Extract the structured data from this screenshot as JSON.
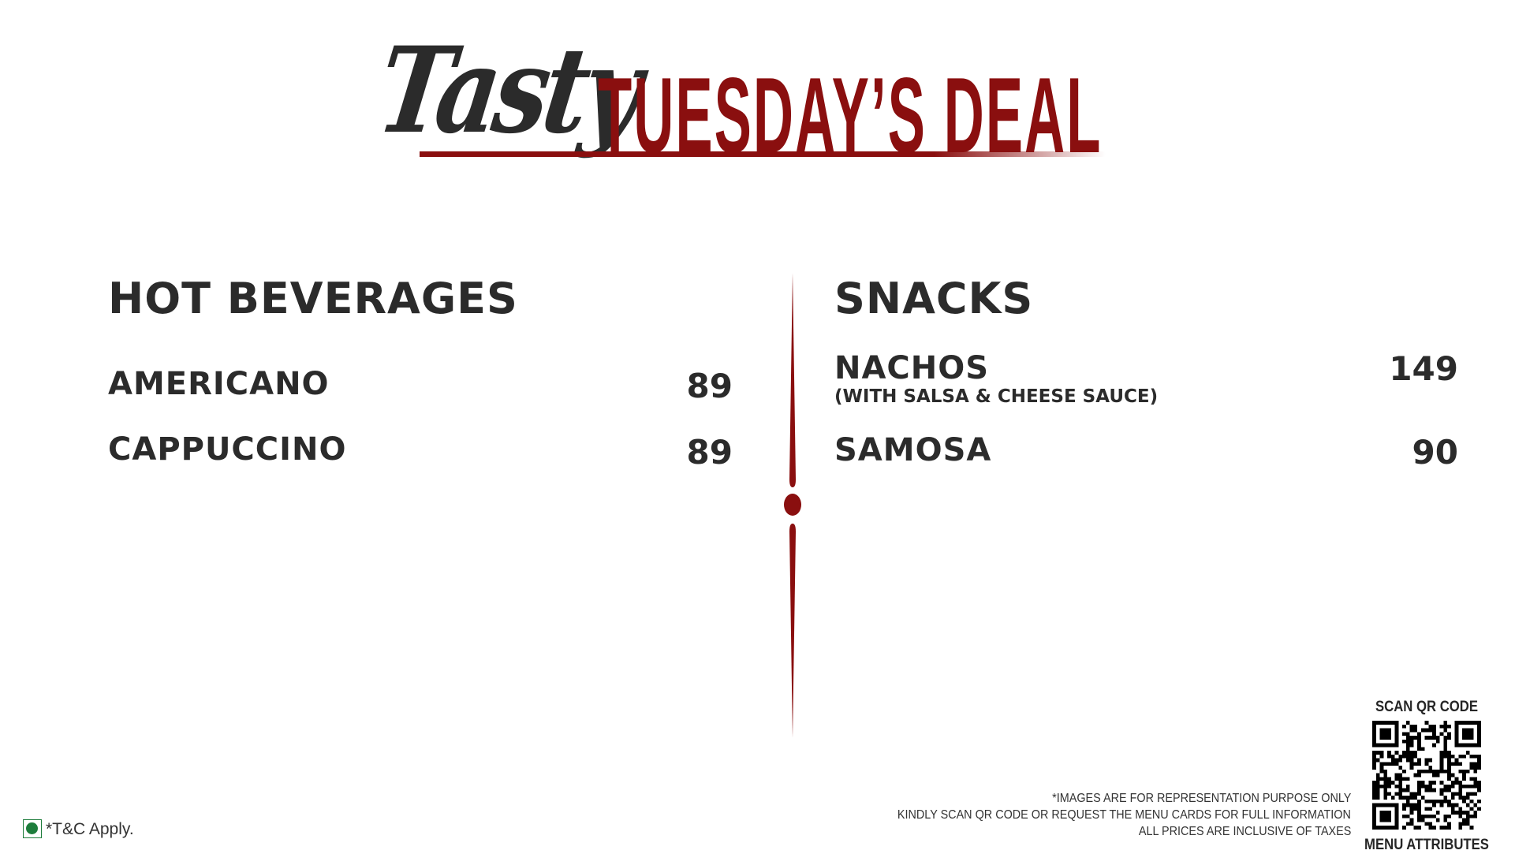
{
  "header": {
    "script_word": "Tasty",
    "title": "TUESDAY’S DEAL"
  },
  "colors": {
    "accent": "#8a0f0f",
    "text": "#2b2b2b",
    "veg": "#1e7d3c"
  },
  "left": {
    "category": "HOT BEVERAGES",
    "items": [
      {
        "name": "AMERICANO",
        "price": "89"
      },
      {
        "name": "CAPPUCCINO",
        "price": "89"
      }
    ]
  },
  "right": {
    "category": "SNACKS",
    "items": [
      {
        "name": "NACHOS",
        "note": "(WITH SALSA & CHEESE SAUCE)",
        "price": "149"
      },
      {
        "name": "SAMOSA",
        "price": "90"
      }
    ]
  },
  "footer": {
    "disclaimers": [
      "*IMAGES ARE FOR REPRESENTATION PURPOSE ONLY",
      "KINDLY SCAN QR CODE OR REQUEST THE MENU CARDS FOR FULL INFORMATION",
      "ALL PRICES ARE INCLUSIVE OF TAXES"
    ],
    "qr_top_label": "SCAN QR CODE",
    "qr_bottom_label": "MENU ATTRIBUTES",
    "terms": "*T&C Apply.",
    "veg_icon": "veg-symbol"
  }
}
